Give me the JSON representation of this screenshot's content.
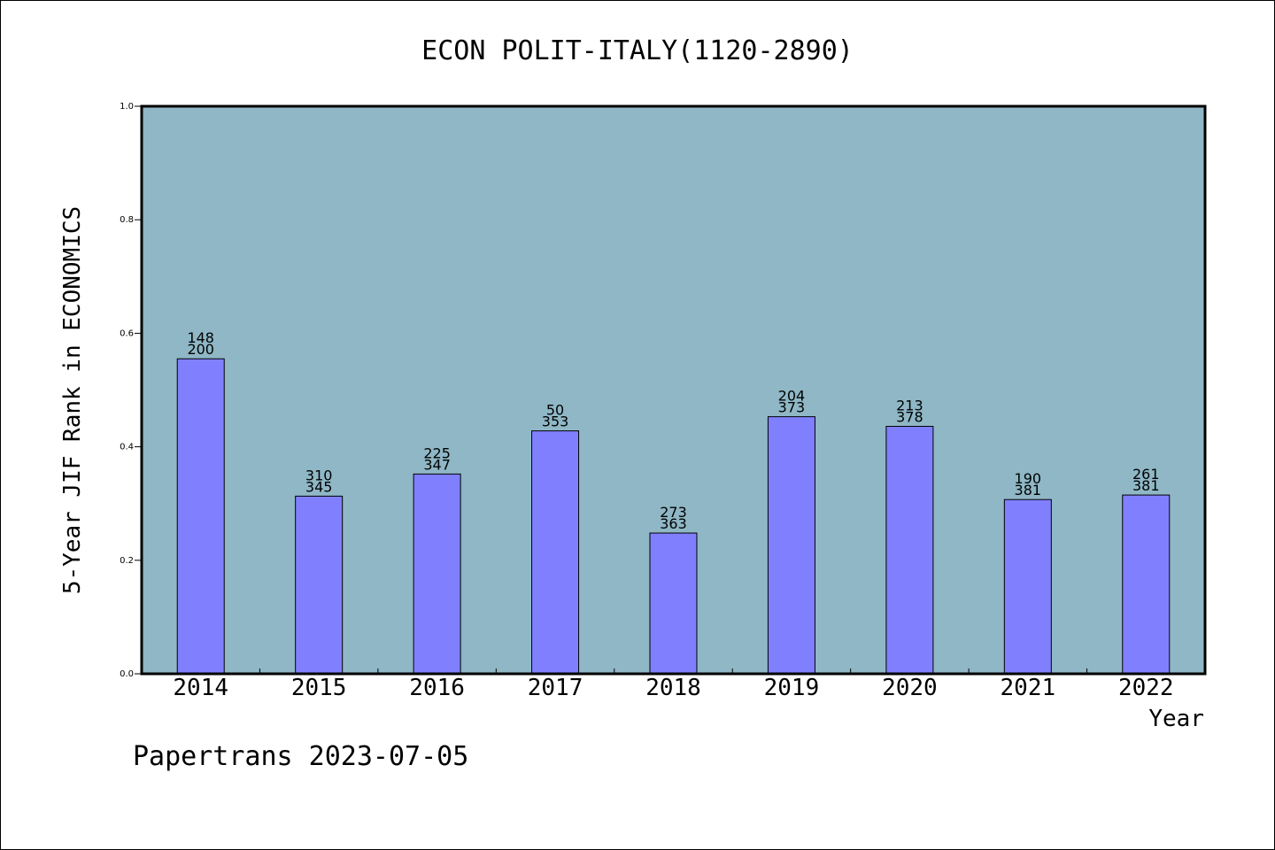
{
  "chart_data": {
    "type": "bar",
    "title": "ECON POLIT-ITALY(1120-2890)",
    "xlabel": "Year",
    "ylabel": "5-Year JIF Rank in ECONOMICS",
    "ylim": [
      0,
      1.0
    ],
    "yticks": [
      "0.0",
      "0.2",
      "0.4",
      "0.6",
      "0.8",
      "1.0"
    ],
    "grid": false,
    "categories": [
      "2014",
      "2015",
      "2016",
      "2017",
      "2018",
      "2019",
      "2020",
      "2021",
      "2022"
    ],
    "values": [
      0.555,
      0.313,
      0.352,
      0.428,
      0.248,
      0.453,
      0.436,
      0.307,
      0.315
    ],
    "labels_top": [
      "148",
      "310",
      "225",
      "50",
      "273",
      "204",
      "213",
      "190",
      "261"
    ],
    "labels_bottom": [
      "200",
      "345",
      "347",
      "353",
      "363",
      "373",
      "378",
      "381",
      "381"
    ],
    "colors": {
      "background": "#8fb7c6",
      "bar": "#8080ff",
      "outline": "#000000"
    }
  },
  "footer": {
    "credit": "Papertrans 2023-07-05"
  }
}
